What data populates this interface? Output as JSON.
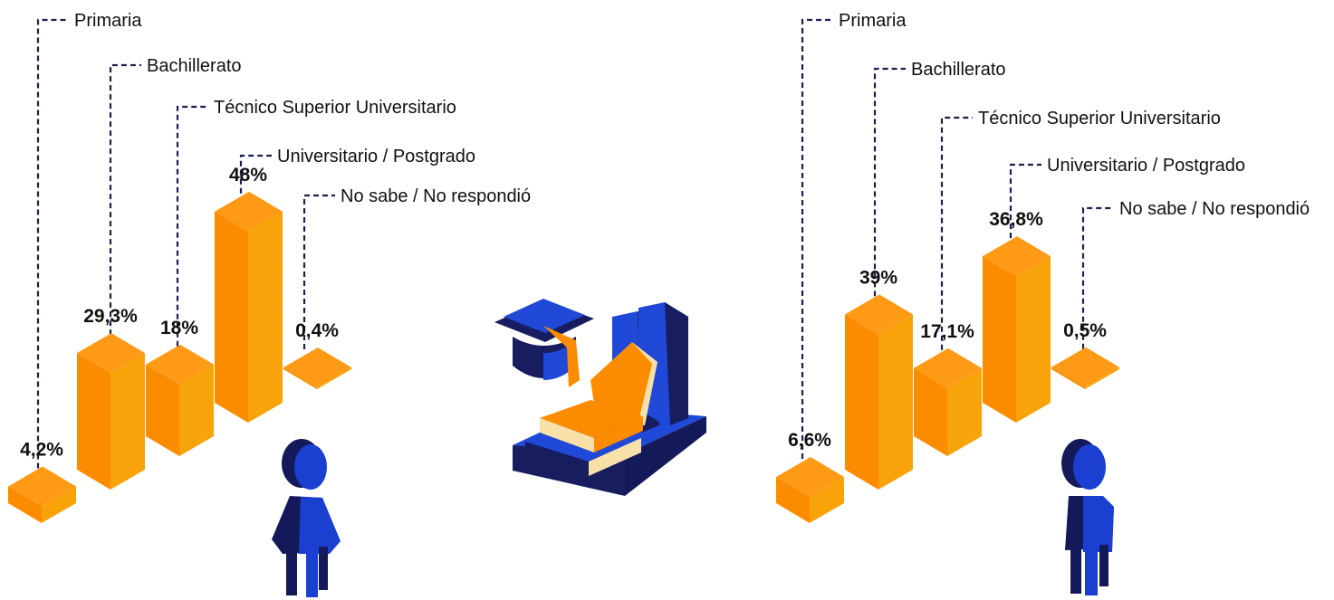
{
  "colors": {
    "bar_front": "#fb8c00",
    "bar_side": "#f8a30a",
    "bar_top": "#ff9a17",
    "leader": "#1c1f4d",
    "person_dark": "#141a59",
    "person_blue": "#1b3fd0",
    "book_navy": "#171d5e",
    "book_blue": "#1f49d6",
    "book_cream": "#f7e1a8"
  },
  "chart_data": [
    {
      "type": "bar",
      "subject": "female",
      "categories": [
        "Primaria",
        "Bachillerato",
        "Técnico Superior Universitario",
        "Universitario / Postgrado",
        "No sabe / No respondió"
      ],
      "values": [
        4.2,
        29.3,
        18,
        48,
        0.4
      ],
      "value_labels": [
        "4,2%",
        "29,3%",
        "18%",
        "48%",
        "0,4%"
      ],
      "ylim": [
        0,
        50
      ]
    },
    {
      "type": "bar",
      "subject": "male",
      "categories": [
        "Primaria",
        "Bachillerato",
        "Técnico Superior Universitario",
        "Universitario / Postgrado",
        "No sabe / No respondió"
      ],
      "values": [
        6.6,
        39,
        17.1,
        36.8,
        0.5
      ],
      "value_labels": [
        "6,6%",
        "39%",
        "17,1%",
        "36,8%",
        "0,5%"
      ],
      "ylim": [
        0,
        50
      ]
    }
  ],
  "icons": {
    "center": "graduation-cap-books-icon",
    "left": "woman-icon",
    "right": "man-icon"
  }
}
